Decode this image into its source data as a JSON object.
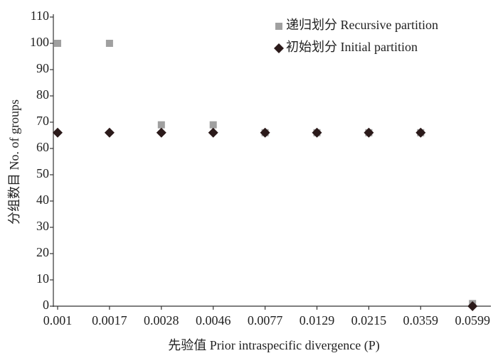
{
  "chart_data": {
    "type": "scatter",
    "x_label": "先验值 Prior intraspecific divergence (P)",
    "y_label": "分组数目 No. of groups",
    "categories": [
      "0.001",
      "0.0017",
      "0.0028",
      "0.0046",
      "0.0077",
      "0.0129",
      "0.0215",
      "0.0359",
      "0.0599"
    ],
    "series": [
      {
        "name": "递归划分 Recursive partition",
        "color": "#a0a0a0",
        "marker": "square",
        "values": [
          100,
          100,
          69,
          69,
          66,
          66,
          66,
          66,
          1
        ]
      },
      {
        "name": "初始划分 Initial partition",
        "color": "#2b1a1a",
        "marker": "diamond",
        "values": [
          66,
          66,
          66,
          66,
          66,
          66,
          66,
          66,
          0
        ]
      }
    ],
    "ylim": [
      0,
      110
    ],
    "yticks": [
      0,
      10,
      20,
      30,
      40,
      50,
      60,
      70,
      80,
      90,
      100,
      110
    ],
    "grid": false,
    "legend": "top-right"
  }
}
